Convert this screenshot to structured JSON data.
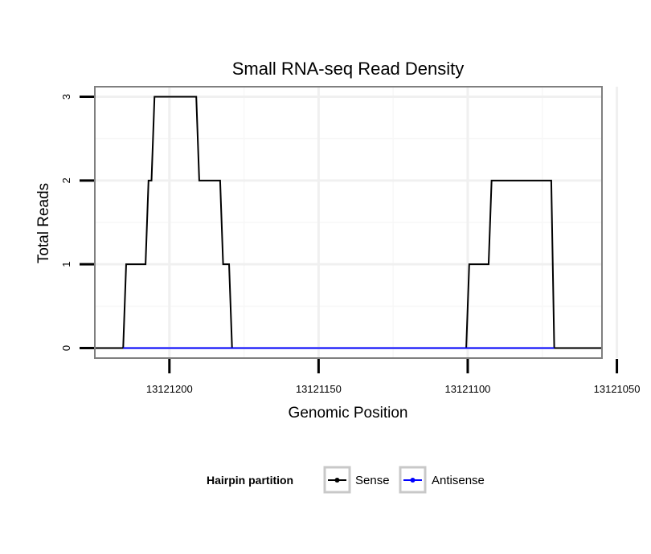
{
  "chart_data": {
    "type": "line",
    "title": "Small RNA-seq Read Density",
    "xlabel": "Genomic Position",
    "ylabel": "Total Reads",
    "xlim": [
      13121225,
      13121055
    ],
    "ylim": [
      -0.12,
      3.12
    ],
    "x_ticks": [
      13121200,
      13121150,
      13121100,
      13121050
    ],
    "x_tick_labels": [
      "13121200",
      "13121150",
      "13121100",
      "13121050"
    ],
    "y_ticks": [
      0,
      1,
      2,
      3
    ],
    "y_tick_labels": [
      "0",
      "1",
      "2",
      "3"
    ],
    "grid": true,
    "legend": {
      "title": "Hairpin partition",
      "position": "bottom",
      "entries": [
        "Sense",
        "Antisense"
      ]
    },
    "series": [
      {
        "name": "Sense",
        "color": "#000000",
        "x": [
          13121225,
          13121215.5,
          13121214.5,
          13121208,
          13121207,
          13121206,
          13121205,
          13121204,
          13121191,
          13121190,
          13121183,
          13121182,
          13121180,
          13121179,
          13121100.5,
          13121099.5,
          13121093,
          13121092,
          13121072,
          13121071,
          13121055
        ],
        "y": [
          0,
          0,
          1,
          1,
          2,
          2,
          3,
          3,
          3,
          2,
          2,
          1,
          1,
          0,
          0,
          1,
          1,
          2,
          2,
          0,
          0
        ]
      },
      {
        "name": "Antisense",
        "color": "#0000ff",
        "x": [
          13121215.5,
          13121179,
          13121100.5,
          13121071
        ],
        "y": [
          0,
          0,
          0,
          0
        ]
      }
    ]
  }
}
